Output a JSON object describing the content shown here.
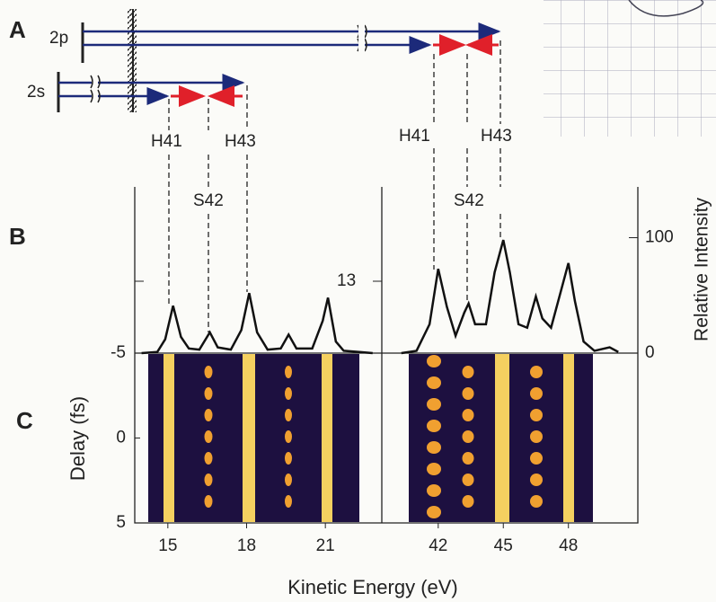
{
  "panel_labels": [
    "A",
    "B",
    "C"
  ],
  "diagram": {
    "levels": [
      "2p",
      "2s"
    ],
    "harmonic_labels": [
      [
        "H41",
        "S42",
        "H43"
      ],
      [
        "H41",
        "S42",
        "H43"
      ]
    ]
  },
  "annotations": [
    "13"
  ],
  "x_label": "Kinetic Energy (eV)",
  "delay_axis": {
    "label": "Delay (fs)",
    "ylim": [
      -5,
      5
    ],
    "yticks": [
      -5,
      0,
      5
    ]
  },
  "chart_data": [
    {
      "type": "line",
      "color": "#111111",
      "xlim": [
        13.74,
        23.15
      ],
      "xticks": [
        15,
        18,
        21
      ],
      "ylim": [
        0,
        144
      ],
      "x": [
        14.0,
        14.6,
        14.9,
        15.2,
        15.5,
        15.8,
        16.2,
        16.6,
        16.9,
        17.4,
        17.8,
        18.1,
        18.4,
        18.8,
        19.3,
        19.6,
        19.9,
        20.5,
        20.9,
        21.1,
        21.4,
        21.7,
        22.3,
        22.8
      ],
      "values": [
        0,
        1,
        12,
        41,
        14,
        4,
        3,
        18,
        5,
        3,
        20,
        52,
        18,
        3,
        4,
        16,
        4,
        4,
        28,
        48,
        10,
        2,
        1,
        0
      ]
    },
    {
      "type": "line",
      "color": "#111111",
      "xlim": [
        39.4,
        51.2
      ],
      "xticks": [
        42,
        45,
        48
      ],
      "ylim": [
        0,
        144
      ],
      "yticks": [
        0,
        100
      ],
      "y_label": "Relative Intensity",
      "x": [
        40.3,
        41.0,
        41.6,
        42.0,
        42.4,
        42.8,
        43.2,
        43.4,
        43.7,
        44.2,
        44.6,
        45.0,
        45.3,
        45.7,
        46.1,
        46.5,
        46.8,
        47.2,
        47.6,
        48.0,
        48.3,
        48.7,
        49.2,
        49.9,
        50.3
      ],
      "values": [
        0,
        2,
        25,
        73,
        40,
        15,
        35,
        43,
        25,
        25,
        70,
        98,
        70,
        25,
        22,
        49,
        30,
        22,
        50,
        78,
        45,
        10,
        2,
        5,
        1
      ]
    }
  ]
}
